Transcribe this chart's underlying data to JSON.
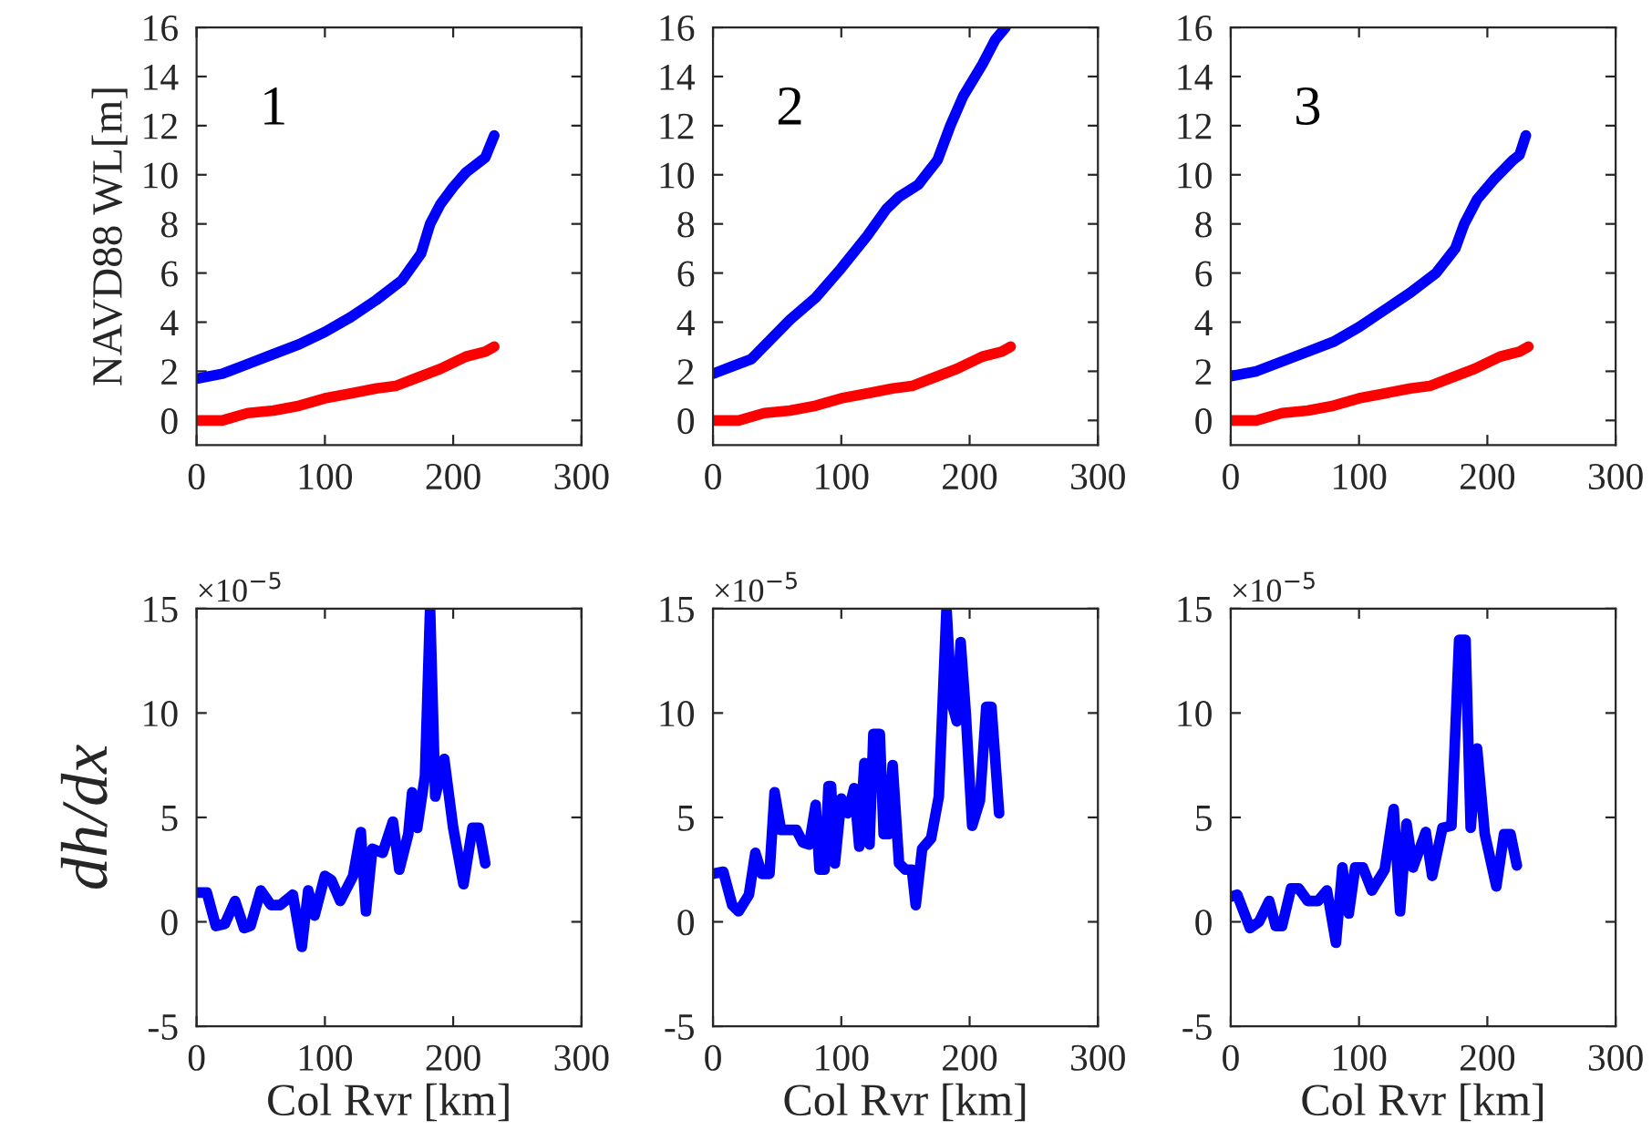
{
  "chart_data": [
    {
      "type": "line",
      "ylabel": "NAVD88 WL[m]",
      "annotations": [
        "1"
      ],
      "xlim": [
        0,
        300
      ],
      "xticks": [
        0,
        100,
        200,
        300
      ],
      "ylim": [
        -1,
        16
      ],
      "yticks": [
        0,
        2,
        4,
        6,
        8,
        10,
        12,
        14,
        16
      ],
      "line_style": "solid",
      "marker": "none",
      "series": [
        {
          "color": "#0000ff",
          "x": [
            0,
            20,
            40,
            60,
            80,
            100,
            120,
            140,
            160,
            175,
            182,
            190,
            200,
            210,
            225,
            232
          ],
          "values": [
            1.7,
            1.9,
            2.3,
            2.7,
            3.1,
            3.6,
            4.2,
            4.9,
            5.7,
            6.8,
            8.0,
            8.8,
            9.5,
            10.1,
            10.7,
            11.6
          ]
        },
        {
          "color": "#ff0000",
          "x": [
            0,
            20,
            40,
            60,
            80,
            100,
            120,
            140,
            155,
            170,
            190,
            210,
            225,
            232
          ],
          "values": [
            0,
            0,
            0.3,
            0.4,
            0.6,
            0.9,
            1.1,
            1.3,
            1.4,
            1.7,
            2.1,
            2.6,
            2.8,
            3.0
          ]
        }
      ]
    },
    {
      "type": "line",
      "annotations": [
        "2"
      ],
      "xlim": [
        0,
        300
      ],
      "xticks": [
        0,
        100,
        200,
        300
      ],
      "ylim": [
        -1,
        16
      ],
      "yticks": [
        0,
        2,
        4,
        6,
        8,
        10,
        12,
        14,
        16
      ],
      "line_style": "solid",
      "marker": "none",
      "series": [
        {
          "color": "#0000ff",
          "x": [
            0,
            15,
            30,
            45,
            60,
            80,
            100,
            120,
            135,
            145,
            160,
            175,
            185,
            195,
            210,
            220,
            228
          ],
          "values": [
            1.9,
            2.2,
            2.5,
            3.3,
            4.1,
            5.0,
            6.2,
            7.5,
            8.6,
            9.1,
            9.6,
            10.6,
            12.0,
            13.2,
            14.5,
            15.5,
            16.0
          ]
        },
        {
          "color": "#ff0000",
          "x": [
            0,
            20,
            40,
            60,
            80,
            100,
            120,
            140,
            155,
            170,
            190,
            210,
            225,
            232
          ],
          "values": [
            0,
            0,
            0.3,
            0.4,
            0.6,
            0.9,
            1.1,
            1.3,
            1.4,
            1.7,
            2.1,
            2.6,
            2.8,
            3.0
          ]
        }
      ]
    },
    {
      "type": "line",
      "annotations": [
        "3"
      ],
      "xlim": [
        0,
        300
      ],
      "xticks": [
        0,
        100,
        200,
        300
      ],
      "ylim": [
        -1,
        16
      ],
      "yticks": [
        0,
        2,
        4,
        6,
        8,
        10,
        12,
        14,
        16
      ],
      "line_style": "solid",
      "marker": "none",
      "series": [
        {
          "color": "#0000ff",
          "x": [
            0,
            20,
            40,
            60,
            80,
            100,
            120,
            140,
            160,
            175,
            182,
            192,
            205,
            220,
            225,
            230
          ],
          "values": [
            1.8,
            2.0,
            2.4,
            2.8,
            3.2,
            3.8,
            4.5,
            5.2,
            6.0,
            7.0,
            8.0,
            9.0,
            9.8,
            10.6,
            10.8,
            11.6
          ]
        },
        {
          "color": "#ff0000",
          "x": [
            0,
            20,
            40,
            60,
            80,
            100,
            120,
            140,
            155,
            170,
            190,
            210,
            225,
            232
          ],
          "values": [
            0,
            0,
            0.3,
            0.4,
            0.6,
            0.9,
            1.1,
            1.3,
            1.4,
            1.7,
            2.1,
            2.6,
            2.8,
            3.0
          ]
        }
      ]
    },
    {
      "type": "line",
      "ylabel": "dh/dx",
      "xlabel": "Col Rvr [km]",
      "annotations": [
        "×10$^{−5}$"
      ],
      "xlim": [
        0,
        300
      ],
      "xticks": [
        0,
        100,
        200,
        300
      ],
      "ylim": [
        -5,
        15
      ],
      "yticks": [
        -5,
        0,
        5,
        10,
        15
      ],
      "line_style": "solid",
      "marker": "none",
      "series": [
        {
          "color": "#0000ff",
          "x": [
            0,
            8,
            15,
            22,
            30,
            37,
            42,
            50,
            58,
            65,
            75,
            82,
            87,
            92,
            100,
            105,
            112,
            122,
            128,
            132,
            137,
            145,
            153,
            158,
            165,
            168,
            172,
            178,
            182,
            186,
            193,
            200,
            208,
            215,
            220,
            225
          ],
          "values": [
            1.4,
            1.4,
            -0.2,
            -0.1,
            1.0,
            -0.3,
            -0.2,
            1.5,
            0.8,
            0.8,
            1.3,
            -1.2,
            1.5,
            0.3,
            2.2,
            2.0,
            1.0,
            2.2,
            4.3,
            0.5,
            3.5,
            3.3,
            4.8,
            2.5,
            4.2,
            6.2,
            4.5,
            7.0,
            15.0,
            6.0,
            7.8,
            4.5,
            1.8,
            4.5,
            4.5,
            2.8
          ]
        }
      ]
    },
    {
      "type": "line",
      "xlabel": "Col Rvr [km]",
      "annotations": [
        "×10$^{−5}$"
      ],
      "xlim": [
        0,
        300
      ],
      "xticks": [
        0,
        100,
        200,
        300
      ],
      "ylim": [
        -5,
        15
      ],
      "yticks": [
        -5,
        0,
        5,
        10,
        15
      ],
      "line_style": "solid",
      "marker": "none",
      "series": [
        {
          "color": "#0000ff",
          "x": [
            0,
            8,
            15,
            20,
            28,
            33,
            38,
            44,
            48,
            53,
            60,
            65,
            70,
            75,
            80,
            83,
            87,
            90,
            92,
            95,
            100,
            105,
            110,
            114,
            118,
            122,
            125,
            130,
            133,
            137,
            140,
            145,
            150,
            155,
            158,
            163,
            170,
            176,
            182,
            186,
            190,
            193,
            197,
            202,
            208,
            213,
            217,
            223
          ],
          "values": [
            2.3,
            2.4,
            0.8,
            0.5,
            1.3,
            3.3,
            2.3,
            2.3,
            6.2,
            4.4,
            4.4,
            4.4,
            3.8,
            3.7,
            5.6,
            2.5,
            2.5,
            6.5,
            6.5,
            2.8,
            5.9,
            5.2,
            6.4,
            3.6,
            7.6,
            3.7,
            9.0,
            9.0,
            4.2,
            4.2,
            7.5,
            2.8,
            2.5,
            2.5,
            0.8,
            3.5,
            4.0,
            6.0,
            15.0,
            10.5,
            9.6,
            13.4,
            10.0,
            4.6,
            5.8,
            10.3,
            10.3,
            5.2
          ]
        }
      ]
    },
    {
      "type": "line",
      "xlabel": "Col Rvr [km]",
      "annotations": [
        "×10$^{−5}$"
      ],
      "xlim": [
        0,
        300
      ],
      "xticks": [
        0,
        100,
        200,
        300
      ],
      "ylim": [
        -5,
        15
      ],
      "yticks": [
        -5,
        0,
        5,
        10,
        15
      ],
      "line_style": "solid",
      "marker": "none",
      "series": [
        {
          "color": "#0000ff",
          "x": [
            0,
            5,
            15,
            22,
            30,
            35,
            40,
            47,
            53,
            60,
            68,
            75,
            82,
            87,
            92,
            97,
            103,
            110,
            120,
            127,
            132,
            137,
            142,
            152,
            157,
            165,
            172,
            178,
            183,
            187,
            192,
            198,
            207,
            213,
            218,
            223
          ],
          "values": [
            1.2,
            1.3,
            -0.3,
            0,
            1.0,
            -0.2,
            -0.2,
            1.6,
            1.6,
            1.0,
            1.0,
            1.5,
            -1.0,
            2.6,
            0.4,
            2.6,
            2.6,
            1.5,
            2.5,
            5.4,
            0.5,
            4.7,
            2.6,
            4.3,
            2.2,
            4.5,
            4.6,
            13.5,
            13.5,
            4.5,
            8.3,
            4.2,
            1.7,
            4.2,
            4.2,
            2.7
          ]
        }
      ]
    }
  ]
}
